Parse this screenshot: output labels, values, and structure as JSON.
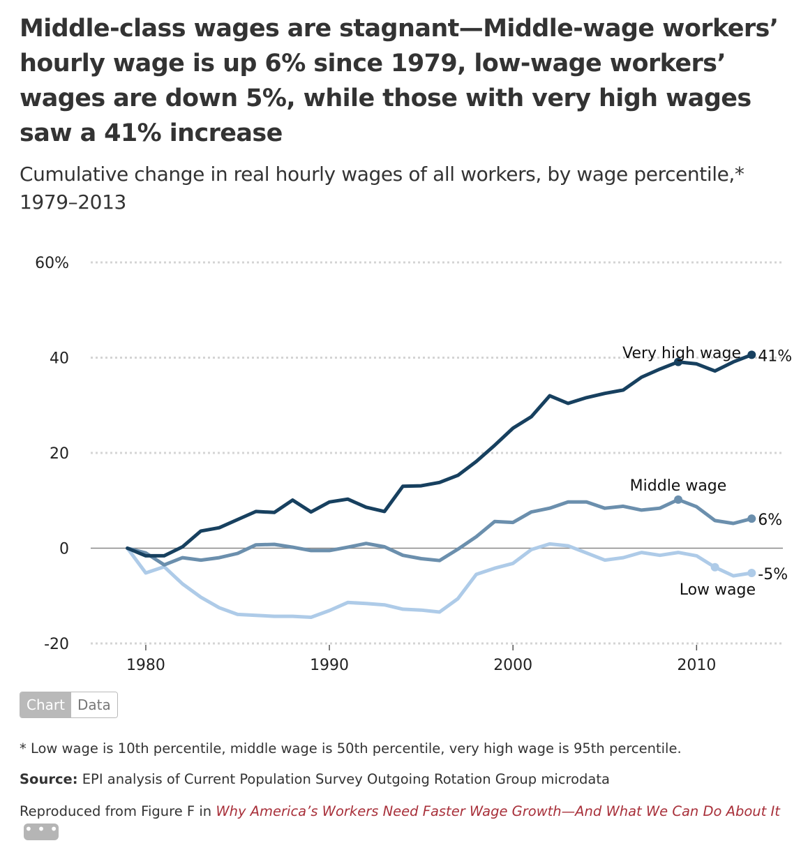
{
  "title": "Middle-class wages are stagnant—Middle-wage workers’ hourly wage is up 6% since 1979, low-wage workers’ wages are down 5%, while those with very high wages saw a 41% increase",
  "subtitle": "Cumulative change in real hourly wages of all workers, by wage percentile,* 1979–2013",
  "colors": {
    "very_high": "#17405f",
    "middle": "#6b8fad",
    "low": "#aecbe8",
    "grid": "#d4d4d4",
    "zero": "#888888"
  },
  "chart_data": {
    "type": "line",
    "title": "Middle-class wages are stagnant—Middle-wage workers’ hourly wage is up 6% since 1979, low-wage workers’ wages are down 5%, while those with very high wages saw a 41% increase",
    "subtitle": "Cumulative change in real hourly wages of all workers, by wage percentile,* 1979–2013",
    "xlabel": "",
    "ylabel": "",
    "xlim": [
      1977,
      2014.7
    ],
    "ylim": [
      -20,
      60
    ],
    "y_ticks": [
      -20,
      0,
      20,
      40,
      60
    ],
    "y_tick_labels": [
      "-20",
      "0",
      "20",
      "40",
      "60%"
    ],
    "x_ticks": [
      1980,
      1990,
      2000,
      2010
    ],
    "x_tick_labels": [
      "1980",
      "1990",
      "2000",
      "2010"
    ],
    "grid": "horizontal dotted",
    "x": [
      1979,
      1980,
      1981,
      1982,
      1983,
      1984,
      1985,
      1986,
      1987,
      1988,
      1989,
      1990,
      1991,
      1992,
      1993,
      1994,
      1995,
      1996,
      1997,
      1998,
      1999,
      2000,
      2001,
      2002,
      2003,
      2004,
      2005,
      2006,
      2007,
      2008,
      2009,
      2010,
      2011,
      2012,
      2013
    ],
    "series": [
      {
        "name": "Very high wage",
        "color": "#17405f",
        "values": [
          0,
          -1.6,
          -1.6,
          0.3,
          3.6,
          4.3,
          6.0,
          7.7,
          7.5,
          10.1,
          7.6,
          9.7,
          10.3,
          8.6,
          7.7,
          13.0,
          13.1,
          13.8,
          15.3,
          18.2,
          21.6,
          25.2,
          27.6,
          32.0,
          30.4,
          31.6,
          32.5,
          33.2,
          35.9,
          37.6,
          39.1,
          38.7,
          37.2,
          39.1,
          40.6
        ],
        "end_label": "41%"
      },
      {
        "name": "Middle wage",
        "color": "#6b8fad",
        "values": [
          0,
          -1.0,
          -3.5,
          -2.0,
          -2.5,
          -2.0,
          -1.1,
          0.7,
          0.8,
          0.2,
          -0.5,
          -0.5,
          0.2,
          1.0,
          0.3,
          -1.5,
          -2.2,
          -2.6,
          -0.2,
          2.4,
          5.6,
          5.4,
          7.6,
          8.4,
          9.7,
          9.7,
          8.4,
          8.8,
          8.0,
          8.4,
          10.2,
          8.7,
          5.8,
          5.2,
          6.2
        ],
        "end_label": "6%"
      },
      {
        "name": "Low wage",
        "color": "#aecbe8",
        "values": [
          0,
          -5.2,
          -3.9,
          -7.5,
          -10.3,
          -12.5,
          -13.9,
          -14.1,
          -14.3,
          -14.3,
          -14.5,
          -13.1,
          -11.4,
          -11.6,
          -11.9,
          -12.8,
          -13.0,
          -13.4,
          -10.6,
          -5.5,
          -4.2,
          -3.2,
          -0.3,
          0.9,
          0.5,
          -1.0,
          -2.5,
          -2.0,
          -0.9,
          -1.5,
          -0.9,
          -1.6,
          -4.0,
          -5.8,
          -5.2
        ],
        "end_label": "-5%"
      }
    ]
  },
  "toggle": {
    "chart_label": "Chart",
    "data_label": "Data"
  },
  "footnote": "* Low wage is 10th percentile, middle wage is 50th percentile, very high wage is 95th percentile.",
  "source": {
    "label": "Source:",
    "text": "EPI analysis of Current Population Survey Outgoing Rotation Group microdata"
  },
  "reproduced": {
    "prefix": "Reproduced from Figure F in",
    "link_text": "Why America’s Workers Need Faster Wage Growth—And What We Can Do About It",
    "more_label": "• • •"
  }
}
